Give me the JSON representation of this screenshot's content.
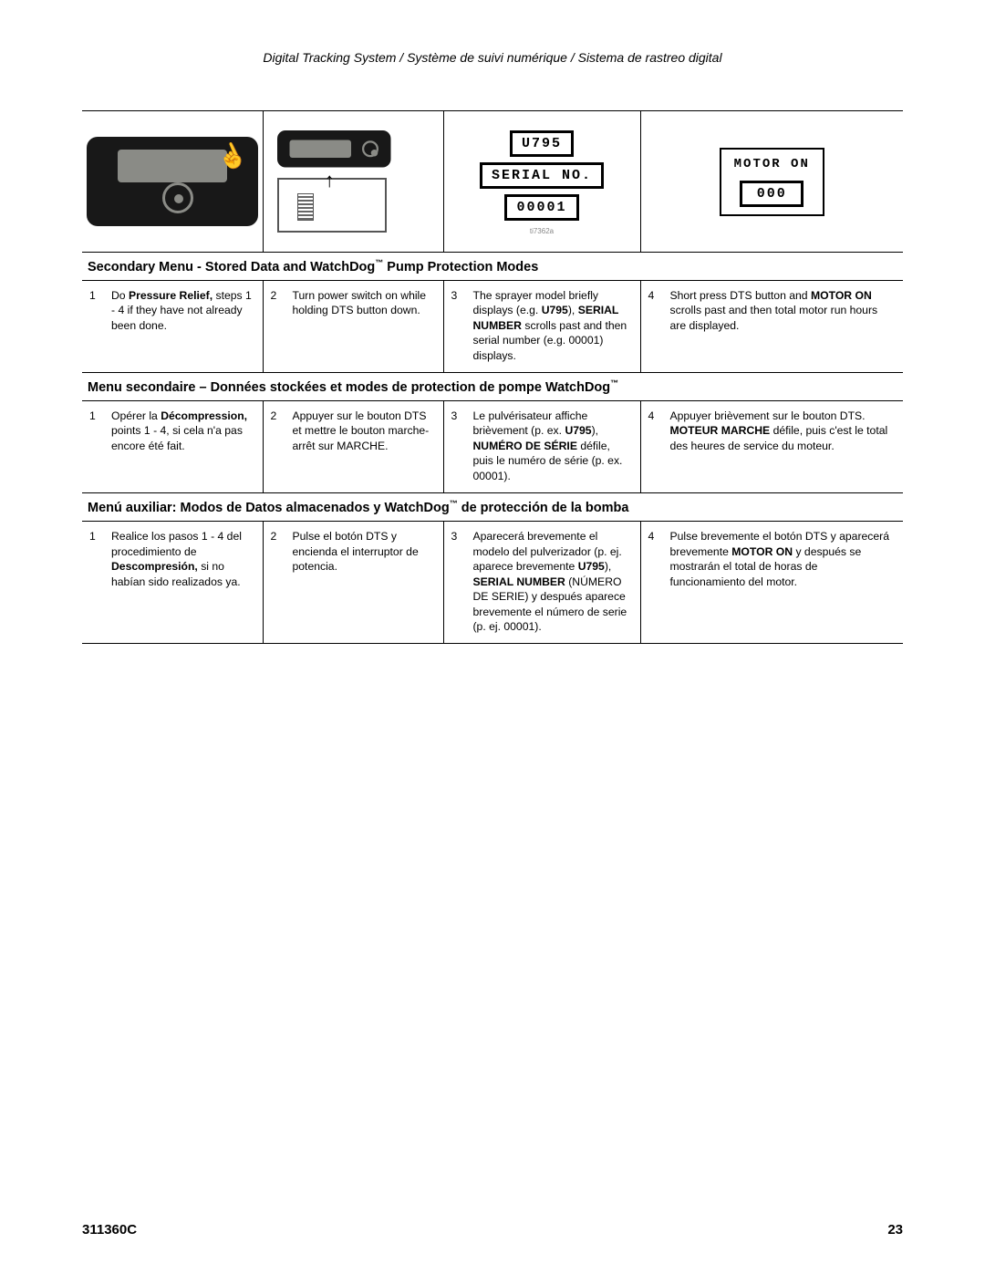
{
  "header": "Digital Tracking System / Système de suivi numérique / Sistema de rastreo digital",
  "displays": {
    "u795": "U795",
    "serial": "SERIAL NO.",
    "serialnum": "00001",
    "motor_on": "MOTOR ON",
    "motor_val": "000",
    "timg_note": "ti7362a"
  },
  "sections": [
    {
      "heading_pre": "Secondary Menu - Stored Data and WatchDog",
      "heading_post": " Pump Protection Modes",
      "steps": [
        {
          "n": "1",
          "html": "Do <b>Pressure Relief,</b> steps 1 - 4 if they have not already been done."
        },
        {
          "n": "2",
          "html": "Turn power switch on while holding DTS button down."
        },
        {
          "n": "3",
          "html": "The sprayer model briefly displays (e.g. <b>U795</b>), <b>SERIAL NUMBER</b> scrolls past and then serial number (e.g. 00001) displays."
        },
        {
          "n": "4",
          "html": "Short press DTS button and <b>MOTOR ON</b> scrolls past and then total motor run hours are displayed."
        }
      ]
    },
    {
      "heading_pre": "Menu secondaire – Données stockées et modes de protection de pompe WatchDog",
      "heading_post": "",
      "steps": [
        {
          "n": "1",
          "html": "Opérer la <b>Décompres­sion,</b> points 1 - 4, si cela n'a pas encore été fait."
        },
        {
          "n": "2",
          "html": "Appuyer sur le bouton DTS et mettre le bouton marche-arrêt sur MARCHE."
        },
        {
          "n": "3",
          "html": "Le pulvérisateur affiche brièvement (p. ex. <b>U795</b>), <b>NUMÉRO DE SÉRIE</b> défile, puis le numéro de série (p. ex. 00001)."
        },
        {
          "n": "4",
          "html": "Appuyer brièvement sur le bouton DTS. <b>MOTEUR MARCHE</b> défile, puis c'est le total des heures de service du moteur."
        }
      ]
    },
    {
      "heading_pre": "Menú auxiliar: Modos de Datos almacenados y WatchDog",
      "heading_post": " de protección de la bomba",
      "steps": [
        {
          "n": "1",
          "html": "Realice los pasos 1 - 4 del procedimiento de <b>Descompresión,</b> si no habían sido realizados ya."
        },
        {
          "n": "2",
          "html": "Pulse el botón DTS y encienda el interruptor de potencia."
        },
        {
          "n": "3",
          "html": "Aparecerá brevemente el modelo del pulverizador (p. ej. aparece brevemente <b>U795</b>), <b>SERIAL NUMBER</b> (NÚMERO DE SERIE) y después aparece brevemente el número de serie (p. ej. 00001)."
        },
        {
          "n": "4",
          "html": "Pulse brevemente el botón DTS y aparecerá brevemente <b>MOTOR ON</b> y después se mostrarán el total de horas de funcionamiento del motor."
        }
      ]
    }
  ],
  "footer": {
    "doc": "311360C",
    "page": "23"
  },
  "colwidths": [
    "22%",
    "22%",
    "24%",
    "32%"
  ]
}
